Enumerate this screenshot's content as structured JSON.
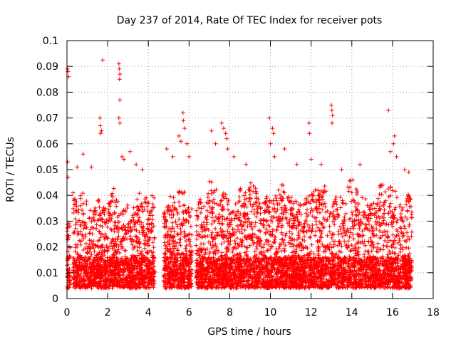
{
  "chart_data": {
    "type": "scatter",
    "title": "Day 237 of 2014, Rate Of TEC Index for receiver pots",
    "xlabel": "GPS time / hours",
    "ylabel": "ROTI / TECUs",
    "xlim": [
      0,
      18
    ],
    "ylim": [
      0,
      0.1
    ],
    "x_ticks": [
      0,
      2,
      4,
      6,
      8,
      10,
      12,
      14,
      16,
      18
    ],
    "y_ticks": [
      0,
      0.01,
      0.02,
      0.03,
      0.04,
      0.05,
      0.06,
      0.07,
      0.08,
      0.09,
      0.1
    ],
    "x_tick_labels": [
      "0",
      "2",
      "4",
      "6",
      "8",
      "10",
      "12",
      "14",
      "16",
      "18"
    ],
    "y_tick_labels": [
      "0",
      "0.01",
      "0.02",
      "0.03",
      "0.04",
      "0.05",
      "0.06",
      "0.07",
      "0.08",
      "0.09",
      "0.1"
    ],
    "grid": true,
    "marker": "+",
    "series": [
      {
        "name": "pots",
        "color": "#ff0000",
        "segments": [
          {
            "start": 0.0,
            "end": 0.15,
            "max": 0.035
          },
          {
            "start": 0.3,
            "end": 4.3,
            "max": 0.045
          },
          {
            "start": 4.75,
            "end": 6.15,
            "max": 0.045
          },
          {
            "start": 6.35,
            "end": 16.95,
            "max": 0.048
          }
        ],
        "outliers": [
          [
            0.02,
            0.089
          ],
          [
            0.05,
            0.088
          ],
          [
            0.08,
            0.086
          ],
          [
            0.03,
            0.053
          ],
          [
            0.06,
            0.047
          ],
          [
            0.5,
            0.051
          ],
          [
            0.8,
            0.056
          ],
          [
            1.2,
            0.051
          ],
          [
            1.62,
            0.07
          ],
          [
            1.64,
            0.067
          ],
          [
            1.66,
            0.064
          ],
          [
            1.7,
            0.065
          ],
          [
            1.75,
            0.0925
          ],
          [
            2.55,
            0.091
          ],
          [
            2.57,
            0.089
          ],
          [
            2.6,
            0.087
          ],
          [
            2.58,
            0.085
          ],
          [
            2.6,
            0.077
          ],
          [
            2.55,
            0.07
          ],
          [
            2.6,
            0.068
          ],
          [
            2.7,
            0.055
          ],
          [
            2.8,
            0.054
          ],
          [
            3.1,
            0.057
          ],
          [
            3.4,
            0.052
          ],
          [
            3.7,
            0.05
          ],
          [
            4.9,
            0.058
          ],
          [
            5.2,
            0.055
          ],
          [
            5.5,
            0.063
          ],
          [
            5.6,
            0.061
          ],
          [
            5.7,
            0.072
          ],
          [
            5.72,
            0.069
          ],
          [
            5.78,
            0.066
          ],
          [
            5.9,
            0.06
          ],
          [
            6.0,
            0.055
          ],
          [
            7.1,
            0.065
          ],
          [
            7.3,
            0.06
          ],
          [
            7.6,
            0.068
          ],
          [
            7.7,
            0.066
          ],
          [
            7.8,
            0.064
          ],
          [
            7.85,
            0.062
          ],
          [
            7.9,
            0.058
          ],
          [
            8.2,
            0.055
          ],
          [
            8.8,
            0.052
          ],
          [
            9.95,
            0.07
          ],
          [
            10.1,
            0.066
          ],
          [
            10.15,
            0.064
          ],
          [
            10.0,
            0.06
          ],
          [
            10.2,
            0.055
          ],
          [
            10.7,
            0.058
          ],
          [
            11.3,
            0.052
          ],
          [
            11.9,
            0.068
          ],
          [
            11.92,
            0.064
          ],
          [
            12.0,
            0.054
          ],
          [
            13.0,
            0.075
          ],
          [
            13.02,
            0.073
          ],
          [
            13.05,
            0.071
          ],
          [
            13.03,
            0.068
          ],
          [
            12.5,
            0.052
          ],
          [
            13.5,
            0.05
          ],
          [
            14.4,
            0.052
          ],
          [
            15.8,
            0.073
          ],
          [
            16.1,
            0.063
          ],
          [
            16.05,
            0.06
          ],
          [
            15.9,
            0.057
          ],
          [
            16.2,
            0.055
          ],
          [
            16.6,
            0.05
          ],
          [
            16.8,
            0.049
          ]
        ]
      }
    ]
  }
}
